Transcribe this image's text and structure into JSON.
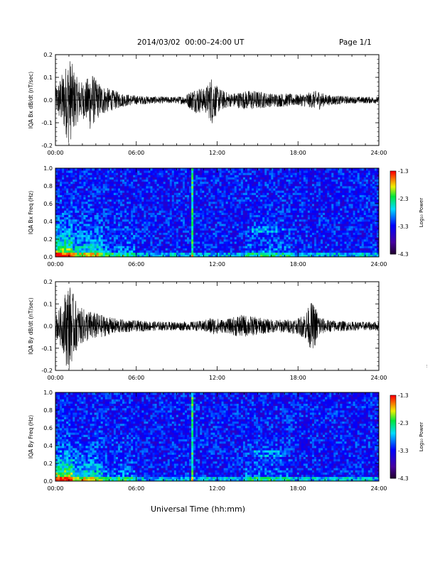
{
  "header": {
    "title": "2014/03/02  00:00–24:00 UT",
    "page_label": "Page 1/1"
  },
  "footer": {
    "x_axis_label": "Universal Time (hh:mm)",
    "side_stamp": "..."
  },
  "chart_data": [
    {
      "type": "line",
      "ylabel": "IQA Bx dB/dt (nT/sec)",
      "xlabel": "Universal Time (hh:mm)",
      "x_ticks": [
        "00:00",
        "06:00",
        "12:00",
        "18:00",
        "24:00"
      ],
      "xlim_hours": [
        0,
        24
      ],
      "ylim": [
        -0.2,
        0.2
      ],
      "y_ticks": [
        "0.2",
        "0.1",
        "0.0",
        "-0.1",
        "-0.2"
      ],
      "envelope": {
        "hours": [
          0,
          0.2,
          0.5,
          0.8,
          1.0,
          1.2,
          1.6,
          2.0,
          2.4,
          2.6,
          3.0,
          3.4,
          4.0,
          5.0,
          6.0,
          8.0,
          9.0,
          9.6,
          10.2,
          10.6,
          11.0,
          11.3,
          11.6,
          12.0,
          12.5,
          13.0,
          13.5,
          14.0,
          14.5,
          15.0,
          15.5,
          16.0,
          17.0,
          18.0,
          19.0,
          19.5,
          20.0,
          21.0,
          22.0,
          24.0
        ],
        "amplitude": [
          0.05,
          0.08,
          0.12,
          0.16,
          0.2,
          0.17,
          0.1,
          0.08,
          0.1,
          0.14,
          0.09,
          0.07,
          0.05,
          0.03,
          0.02,
          0.015,
          0.015,
          0.02,
          0.05,
          0.06,
          0.05,
          0.07,
          0.11,
          0.06,
          0.04,
          0.03,
          0.035,
          0.04,
          0.045,
          0.04,
          0.035,
          0.03,
          0.03,
          0.025,
          0.035,
          0.045,
          0.025,
          0.02,
          0.015,
          0.015
        ]
      }
    },
    {
      "type": "heatmap",
      "ylabel": "IQA Bx Freq (Hz)",
      "x_ticks": [
        "00:00",
        "06:00",
        "12:00",
        "18:00",
        "24:00"
      ],
      "xlim_hours": [
        0,
        24
      ],
      "ylim": [
        0.0,
        1.0
      ],
      "y_ticks": [
        "1.0",
        "0.8",
        "0.6",
        "0.4",
        "0.2",
        "0.0"
      ],
      "colorbar": {
        "label": "Log₁₀ Power",
        "range": [
          -4.3,
          -1.3
        ],
        "ticks": [
          "-1.3",
          "-2.3",
          "-3.3",
          "-4.3"
        ]
      }
    },
    {
      "type": "line",
      "ylabel": "IQA By dB/dt (nT/sec)",
      "x_ticks": [
        "00:00",
        "06:00",
        "12:00",
        "18:00",
        "24:00"
      ],
      "xlim_hours": [
        0,
        24
      ],
      "ylim": [
        -0.2,
        0.2
      ],
      "y_ticks": [
        "0.2",
        "0.1",
        "0.0",
        "-0.1",
        "-0.2"
      ],
      "envelope": {
        "hours": [
          0,
          0.3,
          0.6,
          0.8,
          1.0,
          1.3,
          1.7,
          2.0,
          2.5,
          3.0,
          3.5,
          4.0,
          5.0,
          6.0,
          8.0,
          10.0,
          11.0,
          11.5,
          12.0,
          12.5,
          13.0,
          13.5,
          14.0,
          14.5,
          15.0,
          15.5,
          16.0,
          17.0,
          18.0,
          18.5,
          19.0,
          19.3,
          19.6,
          20.0,
          21.0,
          22.0,
          24.0
        ],
        "amplitude": [
          0.05,
          0.08,
          0.12,
          0.18,
          0.2,
          0.15,
          0.09,
          0.08,
          0.07,
          0.06,
          0.05,
          0.04,
          0.03,
          0.025,
          0.02,
          0.02,
          0.025,
          0.04,
          0.035,
          0.03,
          0.035,
          0.05,
          0.05,
          0.045,
          0.04,
          0.035,
          0.03,
          0.03,
          0.035,
          0.06,
          0.11,
          0.09,
          0.05,
          0.03,
          0.025,
          0.02,
          0.02
        ]
      }
    },
    {
      "type": "heatmap",
      "ylabel": "IQA By Freq (Hz)",
      "x_ticks": [
        "00:00",
        "06:00",
        "12:00",
        "18:00",
        "24:00"
      ],
      "xlim_hours": [
        0,
        24
      ],
      "ylim": [
        0.0,
        1.0
      ],
      "y_ticks": [
        "1.0",
        "0.8",
        "0.6",
        "0.4",
        "0.2",
        "0.0"
      ],
      "colorbar": {
        "label": "Log₁₀ Power",
        "range": [
          -4.3,
          -1.3
        ],
        "ticks": [
          "-1.3",
          "-2.3",
          "-3.3",
          "-4.3"
        ]
      }
    }
  ]
}
